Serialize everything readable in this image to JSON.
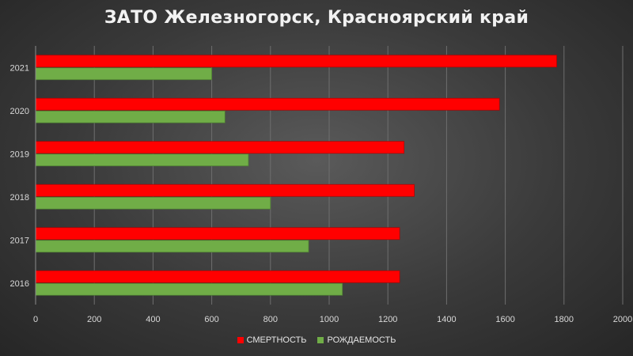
{
  "chart_data": {
    "type": "bar",
    "orientation": "horizontal",
    "title": "ЗАТО Железногорск, Красноярский край",
    "categories": [
      "2016",
      "2017",
      "2018",
      "2019",
      "2020",
      "2021"
    ],
    "series": [
      {
        "name": "СМЕРТНОСТЬ",
        "color": "#ff0000",
        "values": [
          1240,
          1240,
          1290,
          1255,
          1580,
          1775
        ]
      },
      {
        "name": "РОЖДАЕМОСТЬ",
        "color": "#70ad47",
        "values": [
          1045,
          930,
          800,
          725,
          645,
          600
        ]
      }
    ],
    "xlim": [
      0,
      2000
    ],
    "xticks": [
      0,
      200,
      400,
      600,
      800,
      1000,
      1200,
      1400,
      1600,
      1800,
      2000
    ],
    "grid": true,
    "legend_position": "bottom"
  }
}
